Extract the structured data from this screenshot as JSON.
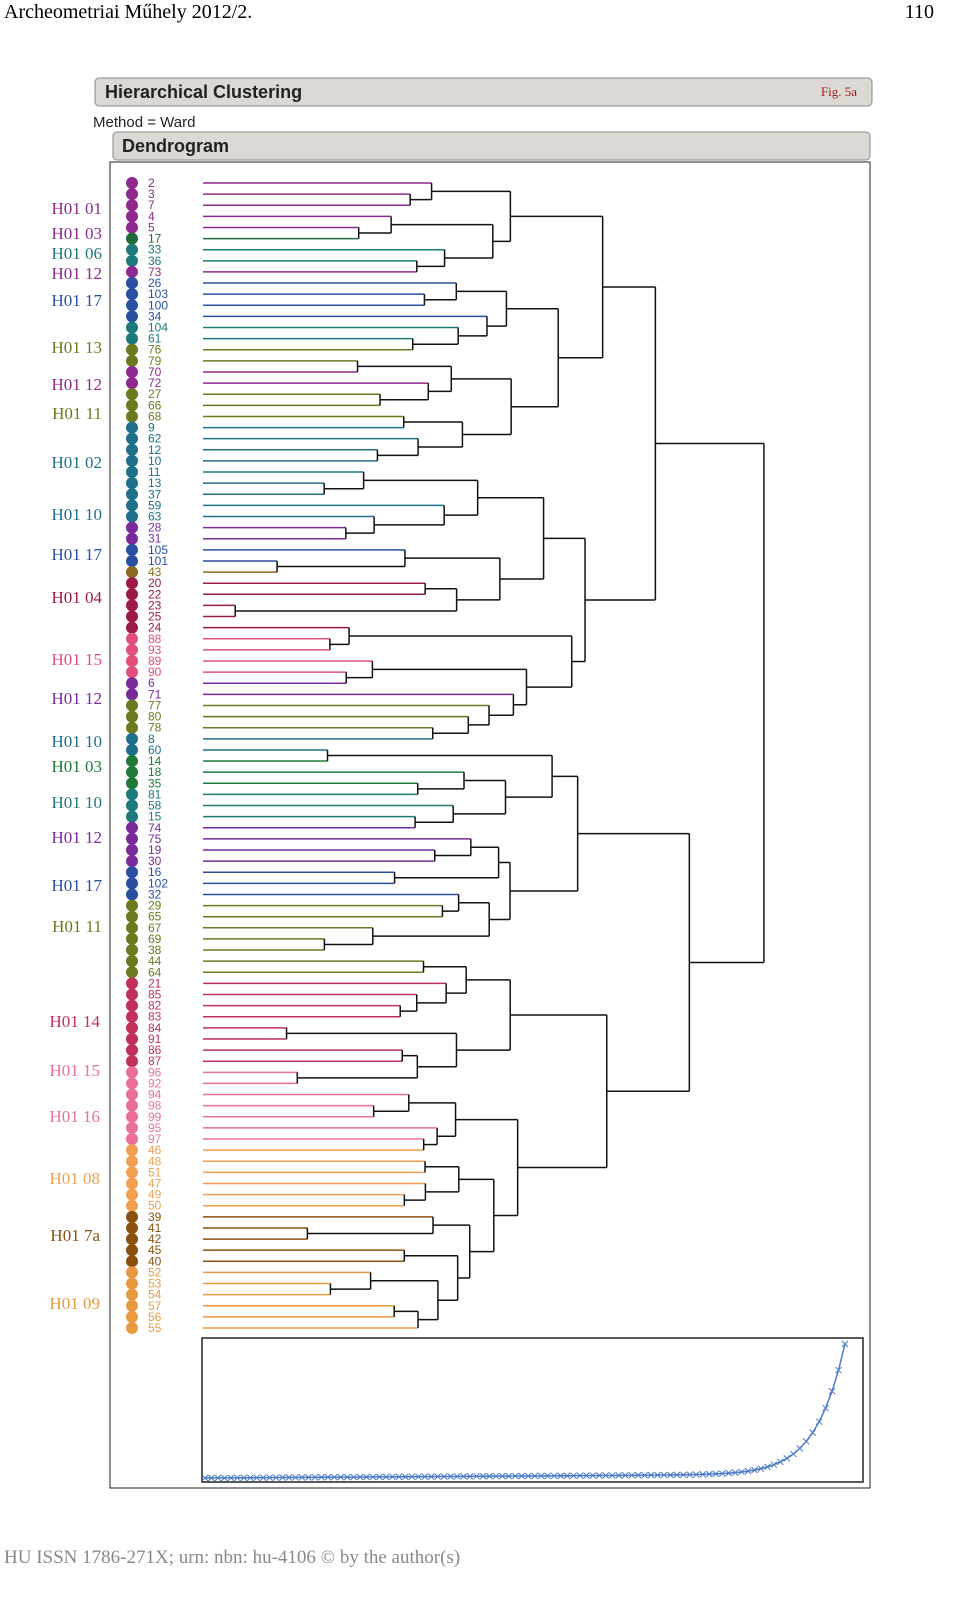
{
  "header": {
    "journal": "Archeometriai Műhely 2012/2.",
    "page": "110"
  },
  "figure": {
    "title": "Hierarchical Clustering",
    "fig": "Fig. 5a",
    "method": "Method = Ward",
    "subtitle": "Dendrogram",
    "groups": [
      "H01 01",
      "H01 03",
      "H01 06",
      "H01 12",
      "H01 17",
      "H01 13",
      "H01 12",
      "H01 11",
      "H01 02",
      "H01 10",
      "H01 17",
      "H01 04",
      "H01 15",
      "H01 12",
      "H01 10",
      "H01 03",
      "H01 10",
      "H01 12",
      "H01 17",
      "H01 11",
      "H01 14",
      "H01 15",
      "H01 16",
      "H01 08",
      "H01 7a",
      "H01 09"
    ],
    "leaves": [
      "2",
      "3",
      "7",
      "4",
      "5",
      "17",
      "33",
      "36",
      "73",
      "26",
      "103",
      "100",
      "34",
      "104",
      "61",
      "76",
      "79",
      "70",
      "72",
      "27",
      "66",
      "68",
      "9",
      "62",
      "12",
      "10",
      "11",
      "13",
      "37",
      "59",
      "63",
      "28",
      "31",
      "105",
      "101",
      "43",
      "20",
      "22",
      "23",
      "25",
      "24",
      "88",
      "93",
      "89",
      "90",
      "6",
      "71",
      "77",
      "80",
      "78",
      "8",
      "60",
      "14",
      "18",
      "35",
      "81",
      "58",
      "15",
      "74",
      "75",
      "19",
      "30",
      "16",
      "102",
      "32",
      "29",
      "65",
      "67",
      "69",
      "38",
      "44",
      "64",
      "21",
      "85",
      "82",
      "83",
      "84",
      "91",
      "86",
      "87",
      "96",
      "92",
      "94",
      "98",
      "99",
      "95",
      "97",
      "46",
      "48",
      "51",
      "47",
      "49",
      "50",
      "39",
      "41",
      "42",
      "45",
      "40",
      "52",
      "53",
      "54",
      "57",
      "56",
      "55"
    ]
  },
  "footer": "HU ISSN 1786-271X; urn: nbn: hu-4106 © by the author(s)"
}
